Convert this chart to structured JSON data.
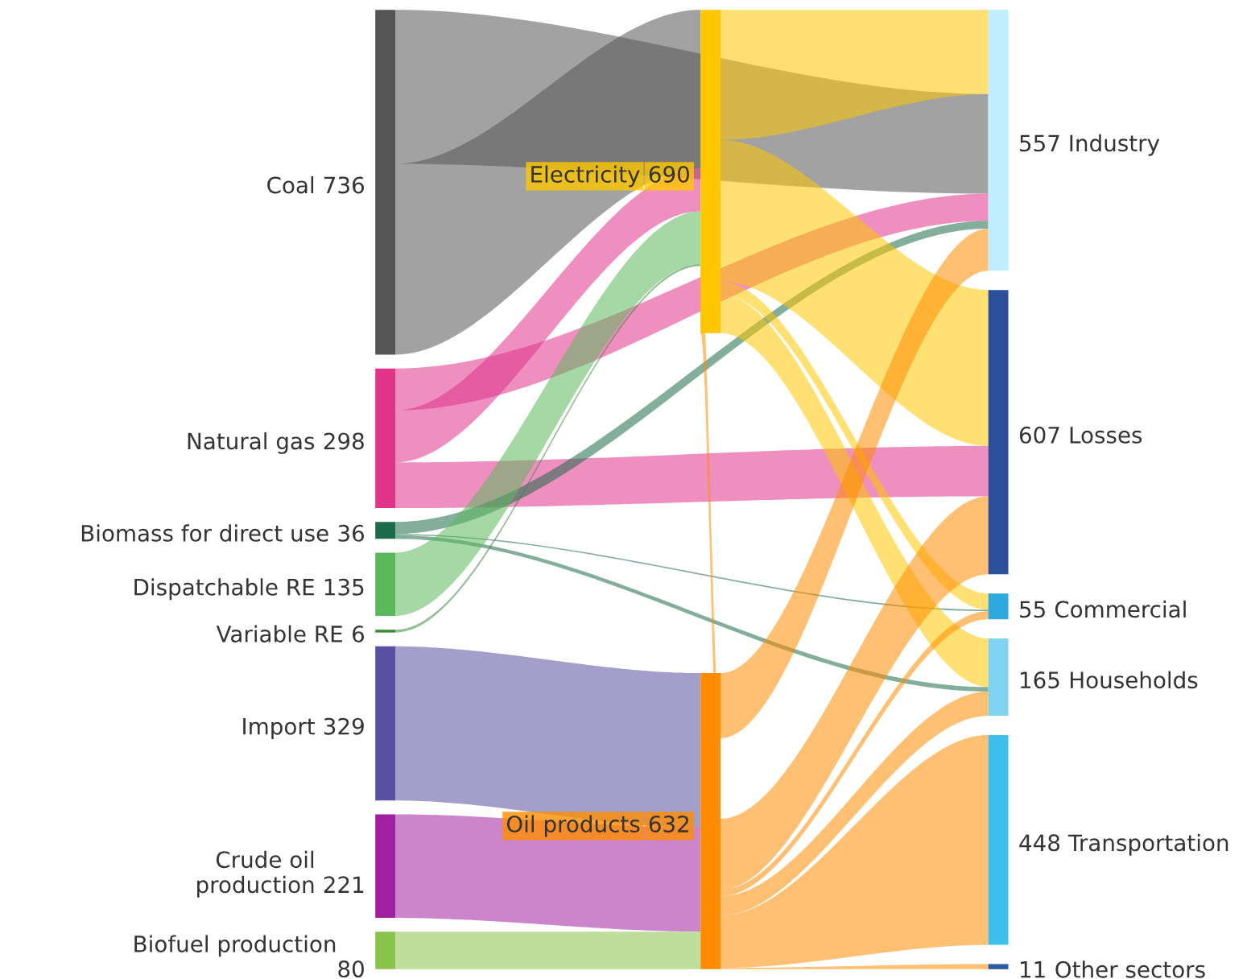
{
  "chart_data": {
    "type": "other",
    "data_labels": true,
    "categories": [
      "Coal",
      "Natural gas",
      "Biomass for direct use",
      "Dispatchable RE",
      "Variable RE",
      "Import",
      "Crude oil\nproduction",
      "Biofuel production\n",
      "Electricity",
      "Oil products",
      "Industry",
      "Losses",
      "Commercial",
      "Households",
      "Transportation",
      "Other sectors"
    ],
    "values": [
      736,
      298,
      36,
      135,
      6,
      329,
      221,
      80,
      690,
      632,
      557,
      607,
      55,
      165,
      448,
      11
    ],
    "colors": [
      "#555555",
      "#e0338a",
      "#1e6b4a",
      "#5cb85c",
      "#3a8a3a",
      "#5a4fa0",
      "#a020a0",
      "#8bc34a",
      "#ffc700",
      "#ff8c00",
      "#bfeefd",
      "#2d4f9a",
      "#2fa8e0",
      "#7fd3f0",
      "#3fc0ea",
      "#2d5aa0"
    ]
  }
}
